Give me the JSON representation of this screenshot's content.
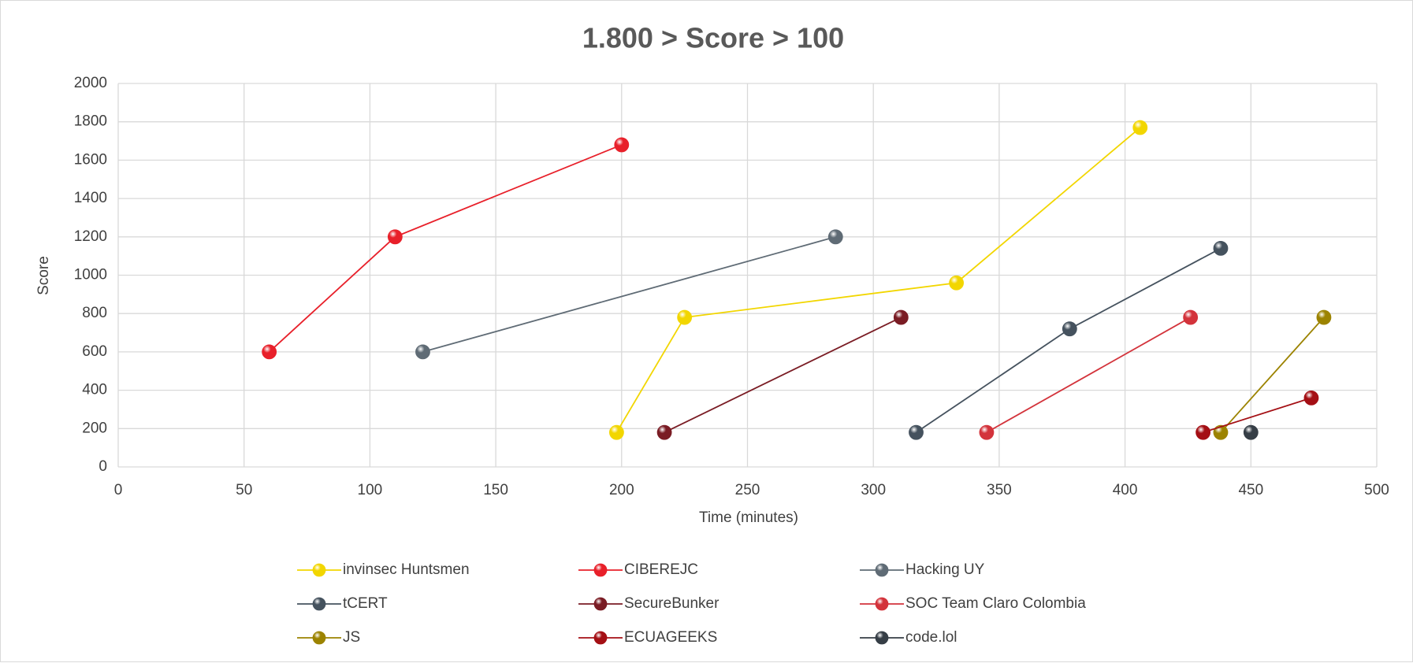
{
  "chart_data": {
    "type": "line",
    "title": "1.800 > Score > 100",
    "xlabel": "Time (minutes)",
    "ylabel": "Score",
    "xlim": [
      0,
      500
    ],
    "xticks": [
      0,
      50,
      100,
      150,
      200,
      250,
      300,
      350,
      400,
      450,
      500
    ],
    "ylim": [
      0,
      2000
    ],
    "yticks": [
      0,
      200,
      400,
      600,
      800,
      1000,
      1200,
      1400,
      1600,
      1800,
      2000
    ],
    "grid": true,
    "legend": "bottom",
    "series": [
      {
        "name": "invinsec Huntsmen",
        "color": "#f2d600",
        "x": [
          198,
          225,
          333,
          406
        ],
        "values": [
          180,
          780,
          960,
          1770
        ]
      },
      {
        "name": "CIBEREJC",
        "color": "#e8202a",
        "x": [
          60,
          110,
          200
        ],
        "values": [
          600,
          1200,
          1680
        ]
      },
      {
        "name": "Hacking UY",
        "color": "#5f6b75",
        "x": [
          121,
          285
        ],
        "values": [
          600,
          1200
        ]
      },
      {
        "name": "tCERT",
        "color": "#45525e",
        "x": [
          317,
          378,
          438
        ],
        "values": [
          180,
          720,
          1140
        ]
      },
      {
        "name": "SecureBunker",
        "color": "#7a1c24",
        "x": [
          217,
          311
        ],
        "values": [
          180,
          780
        ]
      },
      {
        "name": "SOC Team Claro Colombia",
        "color": "#d3333b",
        "x": [
          345,
          426
        ],
        "values": [
          180,
          780
        ]
      },
      {
        "name": "JS",
        "color": "#9c8300",
        "x": [
          438,
          479
        ],
        "values": [
          180,
          780
        ]
      },
      {
        "name": "ECUAGEEKS",
        "color": "#a40f14",
        "x": [
          431,
          474
        ],
        "values": [
          180,
          360
        ]
      },
      {
        "name": "code.lol",
        "color": "#363e46",
        "x": [
          450
        ],
        "values": [
          180
        ]
      }
    ]
  }
}
